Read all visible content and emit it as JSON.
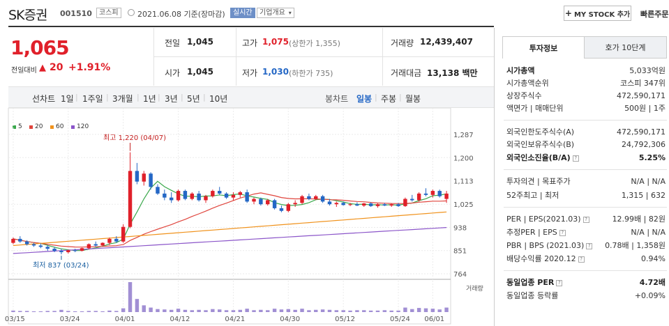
{
  "header": {
    "name": "SK증권",
    "code": "001510",
    "market": "코스피",
    "date": "2021.06.08",
    "basis": "기준(장마감)",
    "realtime": "실시간",
    "company_overview": "기업개요",
    "my_stock_button": "MY STOCK 추가",
    "quick_order": "빠른주문"
  },
  "quote": {
    "price": "1,065",
    "change_label": "전일대비",
    "change_arrow": "▲",
    "change": "20",
    "change_pct": "+1.91%",
    "prev_close_label": "전일",
    "prev_close": "1,045",
    "open_label": "시가",
    "open": "1,045",
    "high_label": "고가",
    "high": "1,075",
    "upper_limit": "(상한가 1,355)",
    "low_label": "저가",
    "low": "1,030",
    "lower_limit": "(하한가 735)",
    "volume_label": "거래량",
    "volume": "12,439,407",
    "value_label": "거래대금",
    "value": "13,138 백만"
  },
  "periods": {
    "label": "선차트",
    "items": [
      "1일",
      "1주일",
      "3개월",
      "1년",
      "3년",
      "5년",
      "10년"
    ],
    "candle_label": "봉차트",
    "candle_items": [
      "일봉",
      "주봉",
      "월봉"
    ],
    "active_candle": "일봉"
  },
  "chart_data": {
    "type": "candlestick",
    "legend": [
      {
        "name": "5",
        "color": "#3aa84b"
      },
      {
        "name": "20",
        "color": "#e0453d"
      },
      {
        "name": "60",
        "color": "#f0921c"
      },
      {
        "name": "120",
        "color": "#8b55c9"
      }
    ],
    "y_ticks": [
      "1,287",
      "1,200",
      "1,113",
      "1,025",
      "938",
      "851",
      "764"
    ],
    "x_ticks": [
      "03/15",
      "03/24",
      "04/01",
      "04/12",
      "04/21",
      "04/30",
      "05/12",
      "05/24",
      "06/01"
    ],
    "high_annotation": "최고 1,220 (04/07)",
    "low_annotation": "최저 837 (03/24)",
    "volume_label": "거래량",
    "ylim": [
      764,
      1287
    ],
    "candles": [
      [
        880,
        900,
        875,
        895
      ],
      [
        895,
        905,
        880,
        885
      ],
      [
        885,
        890,
        870,
        875
      ],
      [
        875,
        880,
        865,
        870
      ],
      [
        870,
        878,
        860,
        865
      ],
      [
        865,
        872,
        850,
        858
      ],
      [
        858,
        865,
        845,
        850
      ],
      [
        850,
        858,
        837,
        845
      ],
      [
        845,
        855,
        840,
        852
      ],
      [
        852,
        858,
        845,
        850
      ],
      [
        850,
        862,
        848,
        860
      ],
      [
        860,
        878,
        856,
        875
      ],
      [
        875,
        885,
        865,
        870
      ],
      [
        870,
        882,
        868,
        880
      ],
      [
        880,
        900,
        872,
        895
      ],
      [
        895,
        905,
        880,
        885
      ],
      [
        885,
        950,
        880,
        940
      ],
      [
        940,
        1220,
        935,
        1150
      ],
      [
        1150,
        1180,
        1100,
        1110
      ],
      [
        1110,
        1150,
        1095,
        1140
      ],
      [
        1140,
        1145,
        1080,
        1090
      ],
      [
        1090,
        1100,
        1060,
        1065
      ],
      [
        1065,
        1080,
        1040,
        1050
      ],
      [
        1050,
        1070,
        1030,
        1040
      ],
      [
        1040,
        1080,
        1035,
        1075
      ],
      [
        1075,
        1080,
        1040,
        1045
      ],
      [
        1045,
        1070,
        1040,
        1065
      ],
      [
        1065,
        1075,
        1035,
        1040
      ],
      [
        1040,
        1060,
        1030,
        1055
      ],
      [
        1055,
        1080,
        1050,
        1075
      ],
      [
        1075,
        1090,
        1060,
        1065
      ],
      [
        1065,
        1070,
        1045,
        1050
      ],
      [
        1050,
        1070,
        1040,
        1060
      ],
      [
        1060,
        1075,
        1050,
        1070
      ],
      [
        1070,
        1080,
        1030,
        1035
      ],
      [
        1035,
        1050,
        1025,
        1045
      ],
      [
        1045,
        1050,
        1020,
        1025
      ],
      [
        1025,
        1045,
        1020,
        1040
      ],
      [
        1040,
        1045,
        1005,
        1010
      ],
      [
        1010,
        1020,
        995,
        1000
      ],
      [
        1000,
        1030,
        995,
        1025
      ],
      [
        1025,
        1040,
        1015,
        1030
      ],
      [
        1030,
        1060,
        1025,
        1055
      ],
      [
        1055,
        1065,
        1040,
        1045
      ],
      [
        1045,
        1060,
        1040,
        1055
      ],
      [
        1055,
        1060,
        1030,
        1035
      ],
      [
        1035,
        1045,
        1020,
        1025
      ],
      [
        1025,
        1035,
        1015,
        1030
      ],
      [
        1030,
        1035,
        1020,
        1022
      ],
      [
        1022,
        1030,
        1018,
        1025
      ],
      [
        1025,
        1032,
        1018,
        1020
      ],
      [
        1020,
        1030,
        1015,
        1028
      ],
      [
        1028,
        1032,
        1015,
        1018
      ],
      [
        1018,
        1028,
        1012,
        1025
      ],
      [
        1025,
        1030,
        1018,
        1020
      ],
      [
        1020,
        1028,
        1015,
        1025
      ],
      [
        1025,
        1030,
        1015,
        1018
      ],
      [
        1018,
        1050,
        1015,
        1045
      ],
      [
        1045,
        1060,
        1035,
        1040
      ],
      [
        1040,
        1070,
        1035,
        1065
      ],
      [
        1065,
        1085,
        1055,
        1060
      ],
      [
        1060,
        1080,
        1050,
        1075
      ],
      [
        1075,
        1080,
        1050,
        1055
      ],
      [
        1045,
        1075,
        1030,
        1065
      ]
    ],
    "volumes": [
      4,
      3,
      3,
      2,
      2,
      3,
      3,
      6,
      3,
      2,
      2,
      3,
      3,
      2,
      4,
      3,
      10,
      80,
      35,
      18,
      12,
      8,
      7,
      6,
      9,
      6,
      5,
      6,
      5,
      8,
      7,
      5,
      5,
      6,
      9,
      5,
      6,
      5,
      9,
      7,
      8,
      6,
      9,
      5,
      6,
      7,
      6,
      5,
      5,
      4,
      5,
      5,
      4,
      4,
      5,
      4,
      4,
      12,
      8,
      11,
      10,
      9,
      7,
      12
    ]
  },
  "invest_panel": {
    "tabs": [
      "투자정보",
      "호가 10단계"
    ],
    "rows": [
      {
        "label": "시가총액",
        "value": "5,033억원"
      },
      {
        "label": "시가총액순위",
        "value": "코스피 347위"
      },
      {
        "label": "상장주식수",
        "value": "472,590,171"
      },
      {
        "label": "액면가 | 매매단위",
        "value": "500원 | 1주"
      },
      {
        "label": "외국인한도주식수(A)",
        "value": "472,590,171"
      },
      {
        "label": "외국인보유주식수(B)",
        "value": "24,792,306"
      },
      {
        "label": "외국인소진율(B/A)",
        "value": "5.25%"
      },
      {
        "label": "투자의견 | 목표주가",
        "value": "N/A | N/A"
      },
      {
        "label": "52주최고 | 최저",
        "value": "1,315 | 632"
      },
      {
        "label": "PER | EPS(2021.03)",
        "value": "12.99배 | 82원"
      },
      {
        "label": "추정PER | EPS",
        "value": "N/A | N/A"
      },
      {
        "label": "PBR | BPS (2021.03)",
        "value": "0.78배 | 1,358원"
      },
      {
        "label": "배당수익률 2020.12",
        "value": "0.94%"
      },
      {
        "label": "동일업종 PER",
        "value": "4.72배"
      },
      {
        "label": "동일업종 등락률",
        "value": "+0.09%"
      }
    ]
  }
}
